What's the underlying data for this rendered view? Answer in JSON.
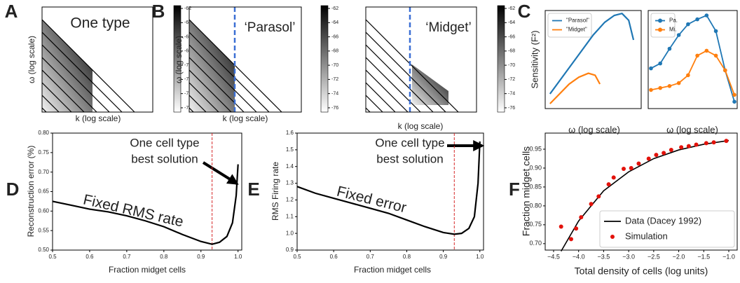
{
  "chart_data": [
    {
      "type": "heatmap",
      "panel": "A",
      "title": "One type",
      "xlabel": "k (log scale)",
      "ylabel": "ω (log scale)",
      "clim": [
        -76.6,
        -61.6
      ],
      "cticks": [
        -62,
        -64,
        -66,
        -68,
        -70,
        -72,
        -74,
        -76
      ]
    },
    {
      "type": "heatmap",
      "panel": "B",
      "title": "‘Parasol’",
      "xlabel": "k (log scale)",
      "ylabel": "ω (log scale)",
      "clim": [
        -76.6,
        -61.6
      ],
      "cticks": [
        -62,
        -64,
        -66,
        -68,
        -70,
        -72,
        -74,
        -76
      ]
    },
    {
      "type": "heatmap",
      "title": "‘Midget’",
      "xlabel": "k (log scale)",
      "clim": [
        -76.6,
        -61.6
      ],
      "cticks": [
        -62,
        -64,
        -66,
        -68,
        -70,
        -72,
        -74,
        -76
      ]
    },
    {
      "type": "line",
      "panel": "C",
      "ylabel": "Sensitivity (F²)",
      "xlabel": "ω (log scale)",
      "xlim": [
        0,
        1
      ],
      "ylim": [
        0,
        1
      ],
      "legend": "upper left",
      "series": [
        {
          "name": "\"Parasol\"",
          "color": "#1f77b4",
          "mode": "line",
          "x": [
            0.05,
            0.2,
            0.35,
            0.5,
            0.62,
            0.72,
            0.8,
            0.87,
            0.92
          ],
          "values": [
            0.15,
            0.35,
            0.55,
            0.75,
            0.88,
            0.95,
            0.97,
            0.9,
            0.7
          ]
        },
        {
          "name": "\"Midget\"",
          "color": "#ff7f0e",
          "mode": "line",
          "x": [
            0.05,
            0.15,
            0.25,
            0.35,
            0.45,
            0.52,
            0.57
          ],
          "values": [
            0.05,
            0.15,
            0.25,
            0.32,
            0.36,
            0.34,
            0.25
          ]
        }
      ]
    },
    {
      "type": "line",
      "xlabel": "ω (log scale)",
      "xlim": [
        -0.3,
        9.3
      ],
      "ylim": [
        0,
        1
      ],
      "legend": "upper left",
      "series": [
        {
          "name": "Pa.",
          "color": "#1f77b4",
          "mode": "both",
          "x": [
            0,
            1,
            2,
            3,
            4,
            5,
            6,
            7,
            8,
            9
          ],
          "values": [
            0.41,
            0.46,
            0.61,
            0.75,
            0.86,
            0.91,
            0.95,
            0.79,
            0.39,
            0.07
          ]
        },
        {
          "name": "Mi.",
          "color": "#ff7f0e",
          "mode": "both",
          "x": [
            0,
            1,
            2,
            3,
            4,
            5,
            6,
            7,
            8,
            9
          ],
          "values": [
            0.19,
            0.21,
            0.23,
            0.26,
            0.34,
            0.54,
            0.59,
            0.54,
            0.39,
            0.14
          ]
        }
      ]
    },
    {
      "type": "line",
      "panel": "D",
      "ylabel": "Reconstruction error (%)",
      "xlabel": "Fraction midget cells",
      "annotations": [
        "One cell type",
        "best solution",
        "Fixed RMS rate"
      ],
      "xlim": [
        0.5,
        1.01
      ],
      "ylim": [
        0.5,
        0.8
      ],
      "xticks": [
        0.5,
        0.6,
        0.7,
        0.8,
        0.9,
        {
          "value": 1.0,
          "label": "1.0"
        }
      ],
      "yticks": [
        {
          "value": 0.5,
          "label": "0.50"
        },
        0.55,
        {
          "value": 0.6,
          "label": "0.60"
        },
        0.65,
        {
          "value": 0.7,
          "label": "0.70"
        },
        0.75,
        {
          "value": 0.8,
          "label": "0.80"
        }
      ],
      "vline": 0.93,
      "vline_color": "#d62728",
      "color": "#000000",
      "x": [
        0.5,
        0.55,
        0.6,
        0.65,
        0.7,
        0.75,
        0.8,
        0.85,
        0.9,
        0.93,
        0.95,
        0.97,
        0.985,
        0.995,
        1.0
      ],
      "values": [
        0.625,
        0.615,
        0.605,
        0.598,
        0.588,
        0.575,
        0.56,
        0.54,
        0.522,
        0.515,
        0.52,
        0.535,
        0.57,
        0.64,
        0.72
      ]
    },
    {
      "type": "line",
      "panel": "E",
      "ylabel": "RMS Firing rate",
      "xlabel": "Fraction midget cells",
      "annotations": [
        "One cell type",
        "best solution",
        "Fixed error"
      ],
      "xlim": [
        0.5,
        1.01
      ],
      "ylim": [
        0.9,
        1.6
      ],
      "xticks": [
        0.5,
        0.6,
        0.7,
        0.8,
        0.9,
        {
          "value": 1.0,
          "label": "1.0"
        }
      ],
      "yticks": [
        0.9,
        {
          "value": 1.0,
          "label": "1.0"
        },
        1.1,
        1.2,
        1.3,
        1.4,
        1.5,
        1.6
      ],
      "vline": 0.93,
      "vline_color": "#d62728",
      "color": "#000000",
      "x": [
        0.5,
        0.55,
        0.6,
        0.65,
        0.7,
        0.75,
        0.8,
        0.85,
        0.9,
        0.93,
        0.95,
        0.97,
        0.985,
        0.995,
        1.0
      ],
      "values": [
        1.28,
        1.24,
        1.21,
        1.18,
        1.15,
        1.12,
        1.08,
        1.04,
        1.005,
        0.995,
        1.0,
        1.03,
        1.1,
        1.3,
        1.55
      ]
    },
    {
      "type": "scatter",
      "panel": "F",
      "ylabel": "Fraction midget cells",
      "xlabel": "Total density of cells (log units)",
      "legend": "lower right",
      "xlim": [
        -4.668,
        -0.832
      ],
      "ylim": [
        0.683,
        0.9926
      ],
      "xticks": [
        {
          "value": -4.5,
          "label": "−4.5"
        },
        {
          "value": -4.0,
          "label": "−4.0"
        },
        {
          "value": -3.5,
          "label": "−3.5"
        },
        {
          "value": -3.0,
          "label": "−3.0"
        },
        {
          "value": -2.5,
          "label": "−2.5"
        },
        {
          "value": -2.0,
          "label": "−2.0"
        },
        {
          "value": -1.5,
          "label": "−1.5"
        },
        {
          "value": -1.0,
          "label": "−1.0"
        }
      ],
      "yticks": [
        {
          "value": 0.7,
          "label": "0.70"
        },
        0.75,
        {
          "value": 0.8,
          "label": "0.80"
        },
        0.85,
        {
          "value": 0.9,
          "label": "0.90"
        },
        0.95
      ],
      "series": [
        {
          "name": "Data (Dacey 1992)",
          "color": "#000000",
          "mode": "line",
          "x": [
            -4.35,
            -4.0,
            -3.5,
            -3.0,
            -2.5,
            -2.0,
            -1.5,
            -1.0
          ],
          "values": [
            0.68,
            0.76,
            0.84,
            0.89,
            0.925,
            0.948,
            0.963,
            0.973
          ]
        },
        {
          "name": "Simulation",
          "color": "#e3120b",
          "mode": "markers",
          "x": [
            -4.35,
            -4.15,
            -4.05,
            -3.95,
            -3.75,
            -3.6,
            -3.4,
            -3.3,
            -3.1,
            -2.95,
            -2.8,
            -2.6,
            -2.45,
            -2.3,
            -2.15,
            -1.95,
            -1.8,
            -1.65,
            -1.45,
            -1.3,
            -1.05
          ],
          "values": [
            0.745,
            0.712,
            0.74,
            0.77,
            0.805,
            0.825,
            0.857,
            0.875,
            0.898,
            0.9,
            0.912,
            0.925,
            0.935,
            0.94,
            0.948,
            0.955,
            0.958,
            0.962,
            0.966,
            0.968,
            0.972
          ]
        }
      ]
    }
  ]
}
